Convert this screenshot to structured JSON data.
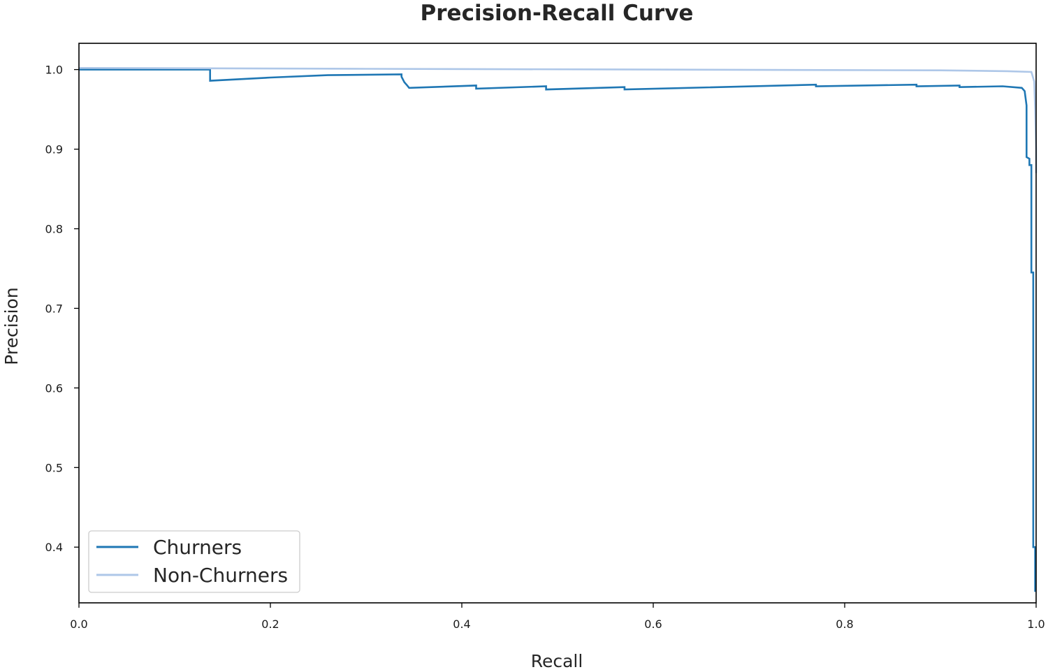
{
  "chart_data": {
    "type": "line",
    "title": "Precision-Recall Curve",
    "xlabel": "Recall",
    "ylabel": "Precision",
    "xlim": [
      0.0,
      1.0
    ],
    "ylim": [
      0.33,
      1.033
    ],
    "x_ticks": [
      "0.0",
      "0.2",
      "0.4",
      "0.6",
      "0.8",
      "1.0"
    ],
    "y_ticks": [
      "0.4",
      "0.5",
      "0.6",
      "0.7",
      "0.8",
      "0.9",
      "1.0"
    ],
    "grid": false,
    "legend_position": "lower-left",
    "step": "post",
    "series": [
      {
        "name": "Churners",
        "color": "#1f77b4",
        "points": [
          [
            0.0,
            1.0
          ],
          [
            0.137,
            1.0
          ],
          [
            0.137,
            0.986
          ],
          [
            0.2,
            0.99
          ],
          [
            0.26,
            0.993
          ],
          [
            0.337,
            0.994
          ],
          [
            0.337,
            0.991
          ],
          [
            0.34,
            0.984
          ],
          [
            0.343,
            0.98
          ],
          [
            0.345,
            0.977
          ],
          [
            0.415,
            0.98
          ],
          [
            0.415,
            0.976
          ],
          [
            0.488,
            0.979
          ],
          [
            0.488,
            0.975
          ],
          [
            0.57,
            0.978
          ],
          [
            0.57,
            0.975
          ],
          [
            0.77,
            0.981
          ],
          [
            0.77,
            0.979
          ],
          [
            0.875,
            0.981
          ],
          [
            0.875,
            0.979
          ],
          [
            0.92,
            0.98
          ],
          [
            0.92,
            0.978
          ],
          [
            0.965,
            0.979
          ],
          [
            0.985,
            0.977
          ],
          [
            0.988,
            0.973
          ],
          [
            0.99,
            0.955
          ],
          [
            0.99,
            0.89
          ],
          [
            0.993,
            0.888
          ],
          [
            0.993,
            0.88
          ],
          [
            0.995,
            0.88
          ],
          [
            0.995,
            0.745
          ],
          [
            0.997,
            0.745
          ],
          [
            0.997,
            0.4
          ],
          [
            0.999,
            0.4
          ],
          [
            0.999,
            0.345
          ],
          [
            1.0,
            0.345
          ]
        ]
      },
      {
        "name": "Non-Churners",
        "color": "#aec7e8",
        "points": [
          [
            0.0,
            1.002
          ],
          [
            0.3,
            1.001
          ],
          [
            0.6,
            1.0
          ],
          [
            0.9,
            0.999
          ],
          [
            0.97,
            0.998
          ],
          [
            0.995,
            0.997
          ],
          [
            0.998,
            0.985
          ],
          [
            0.999,
            0.95
          ],
          [
            1.0,
            0.9
          ],
          [
            1.0,
            0.87
          ]
        ]
      }
    ]
  }
}
